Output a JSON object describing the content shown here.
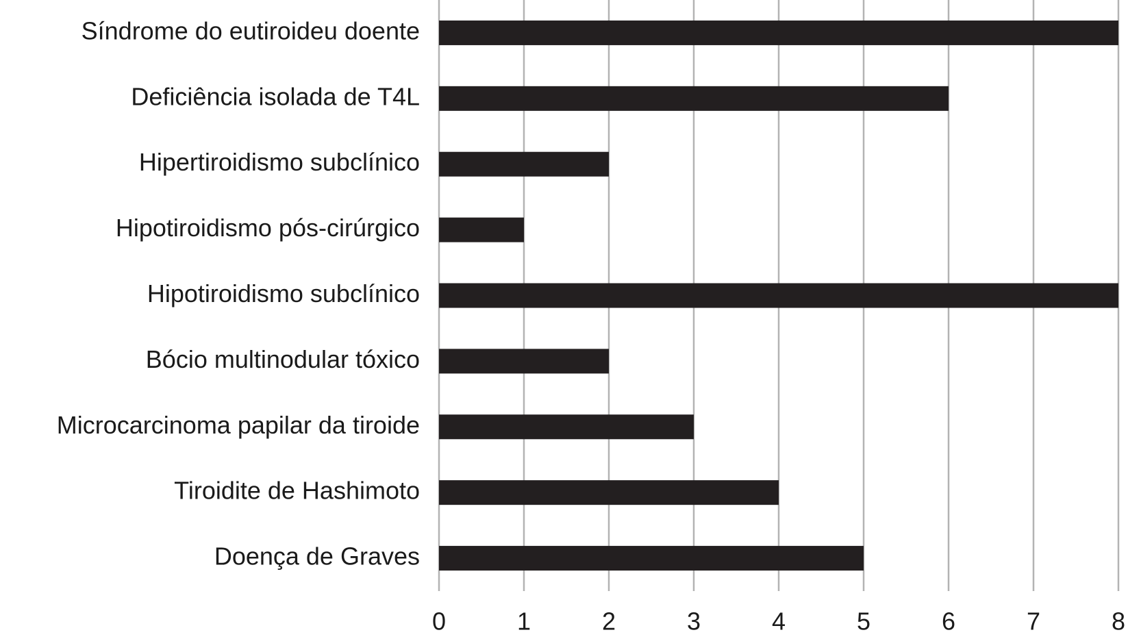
{
  "chart_data": {
    "type": "bar",
    "orientation": "horizontal",
    "categories": [
      "Síndrome do eutiroideu doente",
      "Deficiência isolada de T4L",
      "Hipertiroidismo subclínico",
      "Hipotiroidismo pós-cirúrgico",
      "Hipotiroidismo subclínico",
      "Bócio multinodular tóxico",
      "Microcarcinoma papilar da tiroide",
      "Tiroidite de Hashimoto",
      "Doença de Graves"
    ],
    "values": [
      8,
      6,
      2,
      1,
      8,
      2,
      3,
      4,
      5
    ],
    "color": "#231f20",
    "xlim": [
      0,
      8
    ],
    "xticks": [
      0,
      1,
      2,
      3,
      4,
      5,
      6,
      7,
      8
    ],
    "grid": true
  }
}
